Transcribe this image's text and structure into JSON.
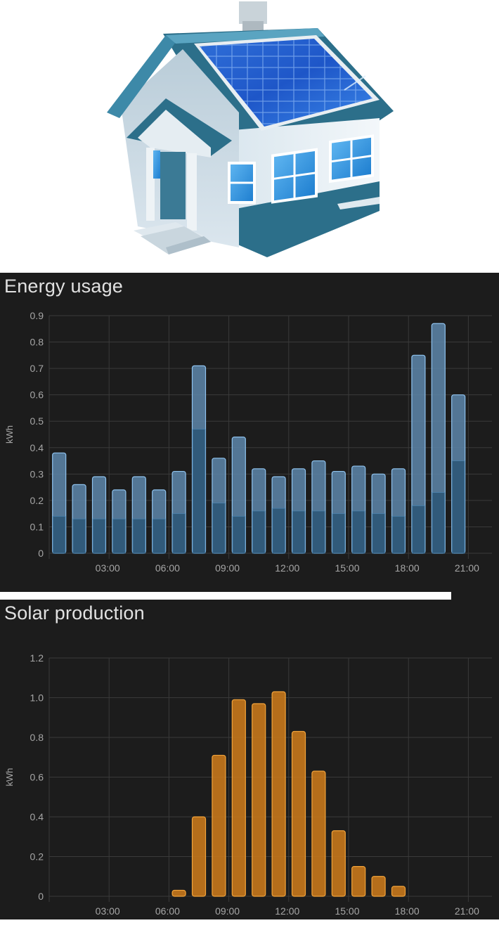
{
  "colors": {
    "card_background": "#1c1c1c",
    "grid": "#3a3a3a",
    "text": "#e1e1e1",
    "axis_text": "#a6a6a6",
    "usage_total": "#5d86aa",
    "usage_total_border": "#8fc3ef",
    "usage_base": "#2f5878",
    "solar_fill": "#c6781c",
    "solar_border": "#f2a33a"
  },
  "hero": {
    "icon": "house-with-solar-panels-icon"
  },
  "charts": {
    "energy": {
      "title": "Energy usage"
    },
    "solar": {
      "title": "Solar production"
    }
  },
  "chart_data": [
    {
      "type": "bar",
      "title": "Energy usage",
      "ylabel": "kWh",
      "xlabel": "",
      "ylim": [
        0,
        0.9
      ],
      "y_ticks": [
        "0",
        "0.1",
        "0.2",
        "0.3",
        "0.4",
        "0.5",
        "0.6",
        "0.7",
        "0.8",
        "0.9"
      ],
      "x_ticks": [
        "03:00",
        "06:00",
        "09:00",
        "12:00",
        "15:00",
        "18:00",
        "21:00"
      ],
      "grid": true,
      "legend": "none",
      "hours": [
        0,
        1,
        2,
        3,
        4,
        5,
        6,
        7,
        8,
        9,
        10,
        11,
        12,
        13,
        14,
        15,
        16,
        17,
        18,
        19,
        20
      ],
      "total": [
        0.38,
        0.26,
        0.29,
        0.24,
        0.29,
        0.24,
        0.31,
        0.71,
        0.36,
        0.44,
        0.32,
        0.29,
        0.32,
        0.35,
        0.31,
        0.33,
        0.3,
        0.32,
        0.75,
        0.87,
        0.6
      ],
      "base": [
        0.14,
        0.13,
        0.13,
        0.13,
        0.13,
        0.13,
        0.15,
        0.47,
        0.19,
        0.14,
        0.16,
        0.17,
        0.16,
        0.16,
        0.15,
        0.16,
        0.15,
        0.14,
        0.18,
        0.23,
        0.35
      ]
    },
    {
      "type": "bar",
      "title": "Solar production",
      "ylabel": "kWh",
      "xlabel": "",
      "ylim": [
        0,
        1.2
      ],
      "y_ticks": [
        "0",
        "0.2",
        "0.4",
        "0.6",
        "0.8",
        "1.0",
        "1.2"
      ],
      "x_ticks": [
        "03:00",
        "06:00",
        "09:00",
        "12:00",
        "15:00",
        "18:00",
        "21:00"
      ],
      "grid": true,
      "legend": "none",
      "hours": [
        6,
        7,
        8,
        9,
        10,
        11,
        12,
        13,
        14,
        15,
        16,
        17
      ],
      "values": [
        0.03,
        0.4,
        0.71,
        0.99,
        0.97,
        1.03,
        0.83,
        0.63,
        0.33,
        0.15,
        0.1,
        0.05
      ]
    }
  ]
}
